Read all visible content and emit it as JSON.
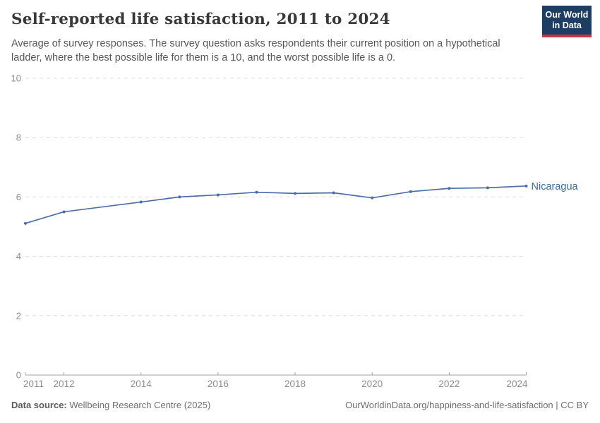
{
  "header": {
    "title": "Self-reported life satisfaction, 2011 to 2024",
    "subtitle": "Average of survey responses. The survey question asks respondents their current position on a hypothetical ladder, where the best possible life for them is a 10, and the worst possible life is a 0.",
    "logo": {
      "line1": "Our World",
      "line2": "in Data",
      "bg_color": "#1d3d63",
      "accent_color": "#cb3243"
    }
  },
  "chart_data": {
    "type": "line",
    "title": "Self-reported life satisfaction, 2011 to 2024",
    "xlabel": "",
    "ylabel": "",
    "xlim": [
      2011,
      2024
    ],
    "ylim": [
      0,
      10
    ],
    "grid": "horizontal-dashed",
    "legend_position": "end-of-line-label",
    "x_ticks": [
      2011,
      2012,
      2014,
      2016,
      2018,
      2020,
      2022,
      2024
    ],
    "y_ticks": [
      0,
      2,
      4,
      6,
      8,
      10
    ],
    "series": [
      {
        "name": "Nicaragua",
        "color": "#4c6ea8",
        "label_color": "#3d6b9e",
        "points": [
          [
            2011,
            5.11
          ],
          [
            2012,
            5.5
          ],
          [
            2014,
            5.83
          ],
          [
            2015,
            6.0
          ],
          [
            2016,
            6.07
          ],
          [
            2017,
            6.16
          ],
          [
            2018,
            6.12
          ],
          [
            2019,
            6.14
          ],
          [
            2020,
            5.97
          ],
          [
            2021,
            6.18
          ],
          [
            2022,
            6.29
          ],
          [
            2023,
            6.31
          ],
          [
            2024,
            6.37
          ]
        ]
      }
    ],
    "note": "no data point for 2013"
  },
  "footer": {
    "data_source_label": "Data source:",
    "data_source_value": " Wellbeing Research Centre (2025)",
    "attribution": "OurWorldinData.org/happiness-and-life-satisfaction | CC BY"
  },
  "colors": {
    "grid": "#dcdcdc",
    "axis": "#a3a3a3",
    "tick_label": "#8c8c8c",
    "title": "#383838",
    "subtitle": "#565656"
  }
}
